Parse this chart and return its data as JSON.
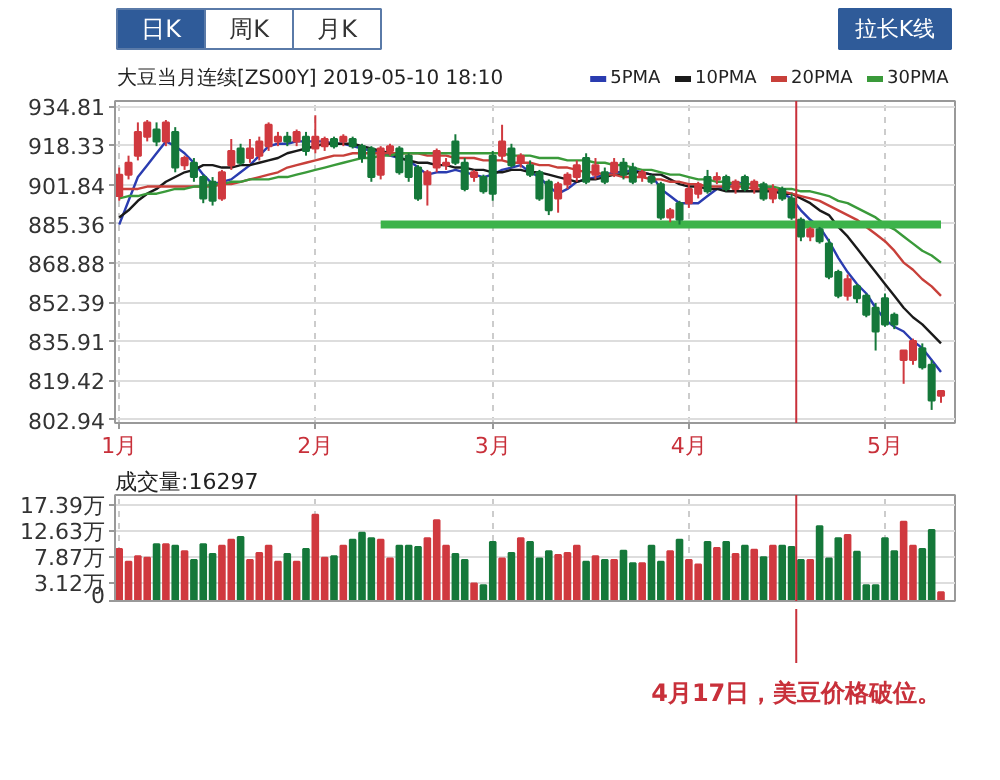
{
  "chart_data": [
    {
      "type": "candlestick",
      "title": "大豆当月连续[ZS00Y] 2019-05-10 18:10",
      "annotations": [
        "日K",
        "周K",
        "月K",
        "拉长K线",
        "4月17日，美豆价格破位。"
      ],
      "categories": [
        "1月",
        null,
        null,
        null,
        null,
        null,
        null,
        null,
        null,
        null,
        null,
        null,
        null,
        null,
        null,
        null,
        null,
        null,
        null,
        null,
        null,
        "2月",
        null,
        null,
        null,
        null,
        null,
        null,
        null,
        null,
        null,
        null,
        null,
        null,
        null,
        null,
        null,
        null,
        null,
        null,
        "3月",
        null,
        null,
        null,
        null,
        null,
        null,
        null,
        null,
        null,
        null,
        null,
        null,
        null,
        null,
        null,
        null,
        null,
        null,
        null,
        null,
        "4月",
        null,
        null,
        null,
        null,
        null,
        null,
        null,
        null,
        null,
        null,
        null,
        null,
        null,
        null,
        null,
        null,
        null,
        null,
        null,
        null,
        "5月",
        null,
        null,
        null,
        null,
        null,
        null
      ],
      "ohlc": [
        [
          897,
          909,
          895,
          906
        ],
        [
          906,
          914,
          904,
          911
        ],
        [
          914,
          928,
          912,
          924
        ],
        [
          922,
          929,
          920,
          928
        ],
        [
          925,
          928,
          918,
          920
        ],
        [
          920,
          929,
          918,
          928
        ],
        [
          924,
          926,
          907,
          909
        ],
        [
          910,
          914,
          908,
          913
        ],
        [
          911,
          913,
          903,
          905
        ],
        [
          905,
          906,
          894,
          896
        ],
        [
          903,
          905,
          893,
          895
        ],
        [
          896,
          908,
          895,
          907
        ],
        [
          910,
          921,
          908,
          916
        ],
        [
          917,
          919,
          910,
          911
        ],
        [
          913,
          921,
          911,
          917
        ],
        [
          914,
          922,
          912,
          920
        ],
        [
          918,
          928,
          916,
          927
        ],
        [
          920,
          924,
          918,
          922
        ],
        [
          922,
          924,
          918,
          920
        ],
        [
          920,
          925,
          918,
          924
        ],
        [
          922,
          924,
          914,
          916
        ],
        [
          917,
          931,
          915,
          922
        ],
        [
          918,
          922,
          916,
          921
        ],
        [
          921,
          922,
          917,
          918
        ],
        [
          920,
          923,
          918,
          922
        ],
        [
          921,
          922,
          917,
          918
        ],
        [
          918,
          919,
          911,
          913
        ],
        [
          917,
          918,
          903,
          905
        ],
        [
          906,
          918,
          904,
          917
        ],
        [
          916,
          919,
          914,
          918
        ],
        [
          917,
          918,
          906,
          907
        ],
        [
          914,
          915,
          903,
          905
        ],
        [
          909,
          910,
          895,
          896
        ],
        [
          902,
          908,
          893,
          907
        ],
        [
          909,
          917,
          907,
          916
        ],
        [
          910,
          913,
          908,
          911
        ],
        [
          920,
          923,
          910,
          911
        ],
        [
          911,
          913,
          899,
          900
        ],
        [
          905,
          908,
          903,
          907
        ],
        [
          905,
          906,
          898,
          899
        ],
        [
          914,
          916,
          895,
          898
        ],
        [
          914,
          927,
          912,
          920
        ],
        [
          917,
          919,
          909,
          910
        ],
        [
          911,
          915,
          909,
          914
        ],
        [
          910,
          912,
          905,
          906
        ],
        [
          907,
          908,
          895,
          896
        ],
        [
          903,
          904,
          889,
          891
        ],
        [
          896,
          903,
          890,
          902
        ],
        [
          902,
          907,
          900,
          906
        ],
        [
          905,
          912,
          903,
          910
        ],
        [
          913,
          915,
          902,
          903
        ],
        [
          906,
          913,
          904,
          910
        ],
        [
          907,
          909,
          902,
          903
        ],
        [
          907,
          913,
          905,
          911
        ],
        [
          911,
          913,
          904,
          906
        ],
        [
          909,
          911,
          902,
          903
        ],
        [
          905,
          908,
          903,
          907
        ],
        [
          905,
          906,
          902,
          903
        ],
        [
          902,
          903,
          887,
          888
        ],
        [
          888,
          892,
          886,
          891
        ],
        [
          894,
          895,
          885,
          887
        ],
        [
          894,
          902,
          892,
          900
        ],
        [
          898,
          903,
          896,
          902
        ],
        [
          905,
          908,
          898,
          899
        ],
        [
          904,
          907,
          902,
          905
        ],
        [
          905,
          906,
          899,
          900
        ],
        [
          900,
          904,
          898,
          903
        ],
        [
          905,
          906,
          899,
          900
        ],
        [
          900,
          904,
          898,
          903
        ],
        [
          902,
          903,
          895,
          896
        ],
        [
          896,
          902,
          894,
          900
        ],
        [
          900,
          901,
          895,
          896
        ],
        [
          896,
          898,
          887,
          888
        ],
        [
          887,
          888,
          878,
          880
        ],
        [
          880,
          884,
          878,
          883
        ],
        [
          883,
          884,
          877,
          878
        ],
        [
          877,
          879,
          862,
          863
        ],
        [
          865,
          866,
          854,
          855
        ],
        [
          855,
          864,
          853,
          862
        ],
        [
          859,
          860,
          852,
          854
        ],
        [
          855,
          856,
          846,
          847
        ],
        [
          850,
          852,
          832,
          840
        ],
        [
          854,
          856,
          842,
          843
        ],
        [
          847,
          848,
          841,
          843
        ],
        [
          828,
          832,
          818,
          832
        ],
        [
          828,
          837,
          826,
          836
        ],
        [
          833,
          835,
          824,
          825
        ],
        [
          826,
          828,
          807,
          811
        ],
        [
          813,
          815,
          810,
          815
        ]
      ],
      "colors": [
        "#d0393f",
        "#d0393f",
        "#d0393f",
        "#d0393f",
        "#15783a",
        "#d0393f",
        "#15783a",
        "#d0393f",
        "#15783a",
        "#15783a",
        "#15783a",
        "#d0393f",
        "#d0393f",
        "#15783a",
        "#d0393f",
        "#d0393f",
        "#d0393f",
        "#d0393f",
        "#15783a",
        "#d0393f",
        "#15783a",
        "#d0393f",
        "#d0393f",
        "#15783a",
        "#d0393f",
        "#15783a",
        "#15783a",
        "#15783a",
        "#d0393f",
        "#d0393f",
        "#15783a",
        "#15783a",
        "#15783a",
        "#d0393f",
        "#d0393f",
        "#d0393f",
        "#15783a",
        "#15783a",
        "#d0393f",
        "#15783a",
        "#15783a",
        "#d0393f",
        "#15783a",
        "#d0393f",
        "#15783a",
        "#15783a",
        "#15783a",
        "#d0393f",
        "#d0393f",
        "#d0393f",
        "#15783a",
        "#d0393f",
        "#15783a",
        "#d0393f",
        "#15783a",
        "#15783a",
        "#d0393f",
        "#15783a",
        "#15783a",
        "#d0393f",
        "#15783a",
        "#d0393f",
        "#d0393f",
        "#15783a",
        "#d0393f",
        "#15783a",
        "#d0393f",
        "#15783a",
        "#d0393f",
        "#15783a",
        "#d0393f",
        "#15783a",
        "#15783a",
        "#15783a",
        "#d0393f",
        "#15783a",
        "#15783a",
        "#15783a",
        "#d0393f",
        "#15783a",
        "#15783a",
        "#15783a",
        "#15783a",
        "#15783a",
        "#d0393f",
        "#d0393f",
        "#15783a",
        "#15783a",
        "#d0393f"
      ],
      "series": [
        {
          "type": "line",
          "name": "5PMA",
          "color": "#2a3cb0",
          "values": [
            885,
            895,
            905,
            910,
            915,
            920,
            918,
            915,
            911,
            906,
            902,
            903,
            904,
            907,
            910,
            914,
            918,
            919,
            919,
            920,
            920,
            920,
            920,
            919,
            919,
            918,
            917,
            916,
            915,
            914,
            913,
            912,
            909,
            906,
            907,
            907,
            908,
            907,
            906,
            905,
            906,
            908,
            909,
            910,
            907,
            905,
            901,
            898,
            900,
            903,
            904,
            905,
            906,
            907,
            907,
            908,
            907,
            906,
            900,
            897,
            894,
            894,
            894,
            897,
            900,
            901,
            903,
            902,
            902,
            901,
            900,
            898,
            896,
            891,
            887,
            884,
            878,
            871,
            865,
            860,
            856,
            850,
            845,
            842,
            840,
            836,
            833,
            828,
            823
          ]
        },
        {
          "type": "line",
          "name": "10PMA",
          "color": "#1a1a1a",
          "values": [
            888,
            891,
            895,
            898,
            900,
            903,
            905,
            907,
            908,
            910,
            910,
            909,
            909,
            910,
            910,
            911,
            912,
            913,
            915,
            916,
            917,
            918,
            919,
            919,
            919,
            919,
            918,
            917,
            916,
            915,
            913,
            912,
            911,
            911,
            910,
            910,
            909,
            909,
            908,
            908,
            907,
            907,
            908,
            908,
            907,
            907,
            906,
            905,
            904,
            903,
            904,
            904,
            905,
            906,
            906,
            907,
            907,
            906,
            906,
            904,
            902,
            901,
            901,
            900,
            900,
            899,
            899,
            899,
            899,
            899,
            899,
            898,
            898,
            896,
            894,
            891,
            889,
            884,
            880,
            875,
            870,
            865,
            860,
            855,
            850,
            846,
            843,
            839,
            835
          ]
        },
        {
          "type": "line",
          "name": "20PMA",
          "color": "#c8403a",
          "values": [
            900,
            900,
            900,
            901,
            901,
            901,
            901,
            901,
            901,
            901,
            901,
            902,
            902,
            903,
            904,
            905,
            906,
            907,
            909,
            910,
            911,
            912,
            913,
            914,
            914,
            915,
            915,
            915,
            915,
            915,
            915,
            915,
            915,
            914,
            914,
            914,
            913,
            913,
            913,
            912,
            912,
            912,
            911,
            911,
            911,
            910,
            910,
            909,
            909,
            908,
            907,
            907,
            906,
            906,
            905,
            905,
            905,
            904,
            904,
            903,
            903,
            902,
            902,
            901,
            901,
            901,
            901,
            901,
            900,
            900,
            900,
            899,
            898,
            897,
            896,
            895,
            893,
            891,
            889,
            887,
            884,
            881,
            878,
            874,
            869,
            866,
            862,
            859,
            855
          ]
        },
        {
          "type": "line",
          "name": "30PMA",
          "color": "#3a9a3a",
          "values": [
            896,
            897,
            897,
            898,
            898,
            899,
            900,
            900,
            901,
            901,
            902,
            902,
            903,
            903,
            904,
            904,
            904,
            905,
            905,
            906,
            907,
            908,
            909,
            910,
            911,
            912,
            913,
            913,
            914,
            914,
            915,
            915,
            915,
            915,
            915,
            915,
            915,
            915,
            915,
            915,
            915,
            915,
            914,
            914,
            914,
            913,
            913,
            913,
            912,
            912,
            912,
            911,
            911,
            910,
            910,
            909,
            908,
            908,
            907,
            906,
            906,
            905,
            904,
            904,
            903,
            903,
            902,
            902,
            902,
            901,
            901,
            900,
            900,
            899,
            899,
            898,
            897,
            895,
            894,
            892,
            890,
            888,
            885,
            883,
            880,
            877,
            874,
            872,
            869
          ]
        },
        {
          "type": "line",
          "color": "#3cb34a",
          "values": [
            null,
            null,
            null,
            null,
            null,
            null,
            null,
            null,
            null,
            null,
            null,
            null,
            null,
            null,
            null,
            null,
            null,
            null,
            null,
            null,
            null,
            null,
            null,
            null,
            null,
            null,
            null,
            null,
            885,
            885,
            885,
            885,
            885,
            885,
            885,
            885,
            885,
            885,
            885,
            885,
            885,
            885,
            885,
            885,
            885,
            885,
            885,
            885,
            885,
            885,
            885,
            885,
            885,
            885,
            885,
            885,
            885,
            885,
            885,
            885,
            885,
            885,
            885,
            885,
            885,
            885,
            885,
            885,
            885,
            885,
            885,
            885,
            885,
            885,
            885,
            885,
            885,
            885,
            885,
            885,
            885,
            885,
            885,
            885,
            885,
            885,
            885,
            885,
            885
          ]
        }
      ],
      "ylim": [
        801.5,
        937.0
      ],
      "yticks": [
        802.94,
        819.42,
        835.91,
        852.39,
        868.88,
        885.36,
        901.84,
        918.33,
        934.81
      ],
      "grid": true,
      "legend": "top right"
    },
    {
      "type": "bar",
      "title": "成交量:16297",
      "categories": [
        null,
        null,
        null,
        null,
        null,
        null,
        null,
        null,
        null,
        null,
        null,
        null,
        null,
        null,
        null,
        null,
        null,
        null,
        null,
        null,
        null,
        null,
        null,
        null,
        null,
        null,
        null,
        null,
        null,
        null,
        null,
        null,
        null,
        null,
        null,
        null,
        null,
        null,
        null,
        null,
        null,
        null,
        null,
        null,
        null,
        null,
        null,
        null,
        null,
        null,
        null,
        null,
        null,
        null,
        null,
        null,
        null,
        null,
        null,
        null,
        null,
        null,
        null,
        null,
        null,
        null,
        null,
        null,
        null,
        null,
        null,
        null,
        null,
        null,
        null,
        null,
        null,
        null,
        null,
        null,
        null,
        null,
        null,
        null,
        null,
        null,
        null,
        null,
        null
      ],
      "values": [
        9.5,
        7.2,
        8.2,
        7.9,
        10.4,
        10.4,
        10.1,
        9.1,
        7.5,
        10.4,
        8.6,
        10.1,
        11.2,
        11.7,
        7.5,
        8.8,
        10.1,
        7.2,
        8.6,
        7.2,
        9.5,
        15.8,
        7.9,
        8.2,
        10.1,
        11.2,
        12.5,
        11.5,
        11.2,
        7.8,
        10.1,
        10.1,
        9.9,
        11.5,
        14.8,
        10.1,
        8.6,
        7.5,
        3.2,
        2.9,
        10.8,
        7.8,
        8.8,
        11.5,
        10.8,
        7.8,
        9.1,
        8.4,
        8.8,
        10.1,
        7.2,
        8.2,
        7.5,
        7.5,
        9.2,
        6.9,
        6.9,
        10.1,
        7.2,
        9.1,
        11.2,
        7.5,
        6.7,
        10.8,
        9.7,
        10.8,
        8.6,
        10.1,
        9.4,
        8.0,
        10.1,
        10.1,
        9.9,
        7.5,
        7.5,
        13.7,
        7.8,
        11.5,
        12.1,
        9.0,
        2.9,
        2.9,
        11.5,
        9.1,
        14.5,
        10.1,
        9.5,
        13.0,
        1.6
      ],
      "colors": [
        "#d0393f",
        "#d0393f",
        "#d0393f",
        "#d0393f",
        "#15783a",
        "#d0393f",
        "#15783a",
        "#d0393f",
        "#15783a",
        "#15783a",
        "#15783a",
        "#d0393f",
        "#d0393f",
        "#15783a",
        "#d0393f",
        "#d0393f",
        "#d0393f",
        "#d0393f",
        "#15783a",
        "#d0393f",
        "#15783a",
        "#d0393f",
        "#d0393f",
        "#15783a",
        "#d0393f",
        "#15783a",
        "#15783a",
        "#15783a",
        "#d0393f",
        "#d0393f",
        "#15783a",
        "#15783a",
        "#15783a",
        "#d0393f",
        "#d0393f",
        "#d0393f",
        "#15783a",
        "#15783a",
        "#d0393f",
        "#15783a",
        "#15783a",
        "#d0393f",
        "#15783a",
        "#d0393f",
        "#15783a",
        "#15783a",
        "#15783a",
        "#d0393f",
        "#d0393f",
        "#d0393f",
        "#15783a",
        "#d0393f",
        "#15783a",
        "#d0393f",
        "#15783a",
        "#15783a",
        "#d0393f",
        "#15783a",
        "#15783a",
        "#d0393f",
        "#15783a",
        "#d0393f",
        "#d0393f",
        "#15783a",
        "#d0393f",
        "#15783a",
        "#d0393f",
        "#15783a",
        "#d0393f",
        "#15783a",
        "#d0393f",
        "#15783a",
        "#15783a",
        "#15783a",
        "#d0393f",
        "#15783a",
        "#15783a",
        "#15783a",
        "#d0393f",
        "#15783a",
        "#15783a",
        "#15783a",
        "#15783a",
        "#15783a",
        "#d0393f",
        "#d0393f",
        "#15783a",
        "#15783a",
        "#d0393f"
      ],
      "ylim": [
        0,
        19.4
      ],
      "yticks": [
        0,
        {
          "value": 3.12,
          "label": "3.12万"
        },
        {
          "value": 7.87,
          "label": "7.87万"
        },
        {
          "value": 12.63,
          "label": "12.63万"
        },
        {
          "value": 17.39,
          "label": "17.39万"
        }
      ],
      "tick_labels": "y",
      "grid": true
    }
  ]
}
